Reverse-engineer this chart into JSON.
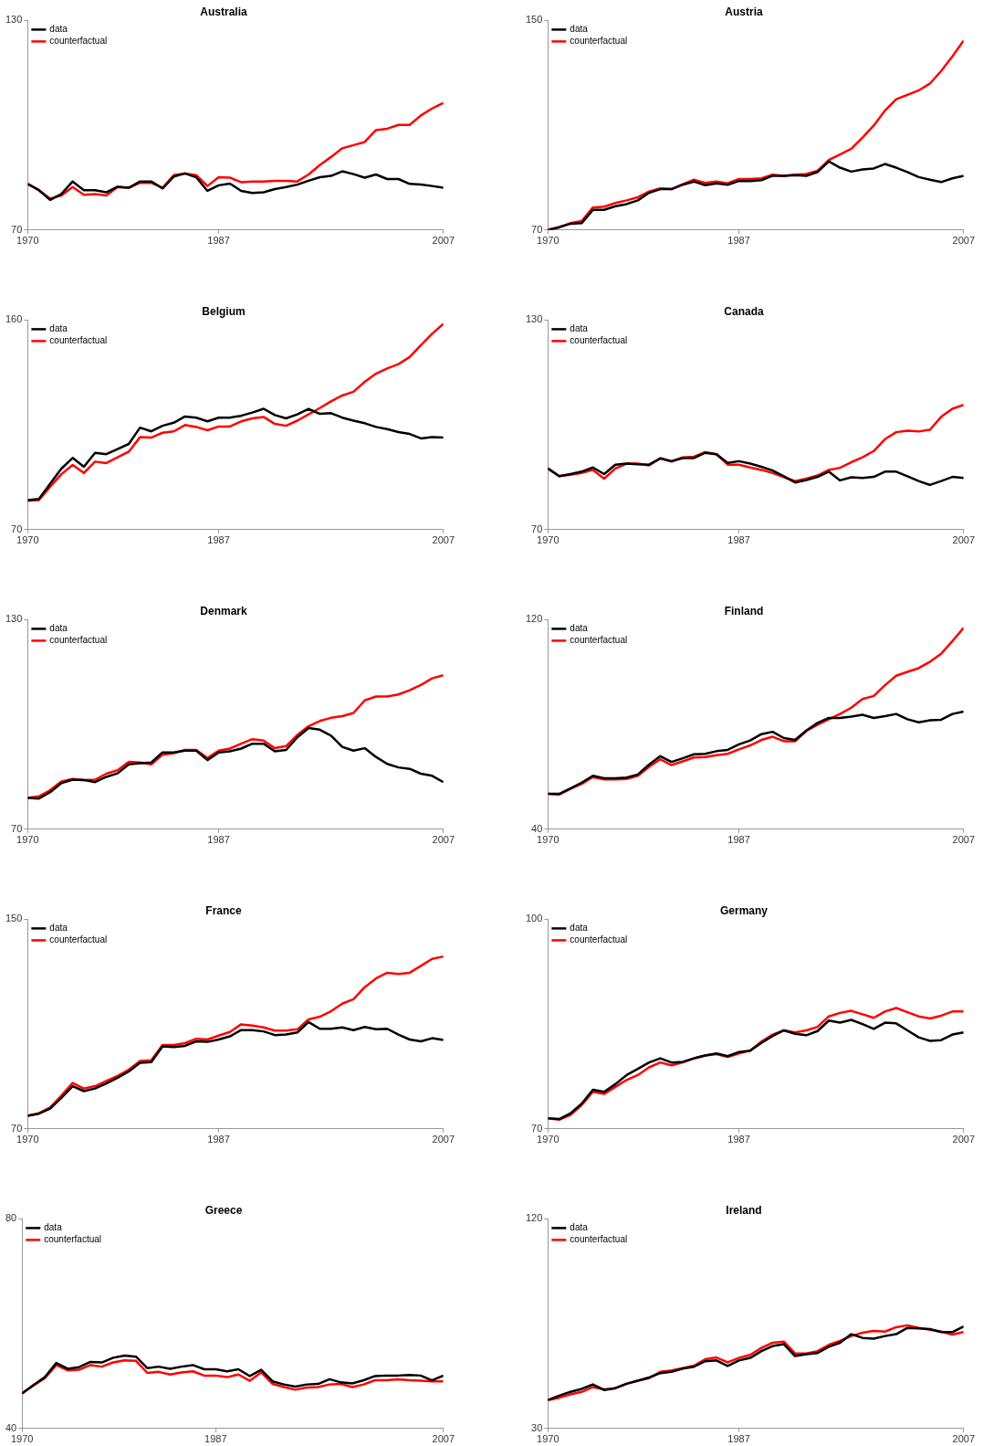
{
  "chart_data": [
    {
      "type": "line",
      "title": "Australia",
      "legend": "top left",
      "grid": false,
      "marker": "none",
      "line_style": "solid",
      "x": [
        1970,
        1971,
        1972,
        1973,
        1974,
        1975,
        1976,
        1977,
        1978,
        1979,
        1980,
        1981,
        1982,
        1983,
        1984,
        1985,
        1986,
        1987,
        1988,
        1989,
        1990,
        1991,
        1992,
        1993,
        1994,
        1995,
        1996,
        1997,
        1998,
        1999,
        2000,
        2001,
        2002,
        2003,
        2004,
        2005,
        2006,
        2007
      ],
      "xlim": [
        1970,
        2007
      ],
      "xticks": [
        1970,
        1987,
        2007
      ],
      "ylim": [
        70,
        130
      ],
      "yticks": [
        70,
        130
      ],
      "series": [
        {
          "name": "data",
          "color": "#000000",
          "values": [
            83.2,
            81.4,
            78.6,
            80.3,
            83.9,
            81.4,
            81.4,
            80.8,
            82.4,
            82.1,
            83.9,
            83.9,
            81.9,
            85.3,
            86.2,
            85.1,
            81.2,
            82.8,
            83.3,
            81.2,
            80.6,
            80.8,
            81.7,
            82.3,
            83.0,
            84.1,
            85.1,
            85.5,
            86.8,
            86.0,
            85.0,
            85.9,
            84.6,
            84.6,
            83.2,
            83.0,
            82.6,
            82.1
          ]
        },
        {
          "name": "counterfactual",
          "color": "#ff0000",
          "values": [
            83.2,
            81.4,
            79.0,
            79.9,
            82.3,
            80.1,
            80.3,
            79.9,
            82.3,
            82.1,
            83.5,
            83.5,
            82.1,
            85.7,
            86.2,
            85.7,
            82.6,
            85.1,
            85.0,
            83.7,
            83.9,
            83.9,
            84.1,
            84.1,
            83.9,
            85.9,
            88.6,
            90.9,
            93.4,
            94.3,
            95.2,
            98.6,
            99.0,
            100.1,
            100.1,
            102.8,
            104.8,
            106.4
          ]
        }
      ]
    },
    {
      "type": "line",
      "title": "Austria",
      "legend": "top left",
      "grid": false,
      "marker": "none",
      "line_style": "solid",
      "x": [
        1970,
        1971,
        1972,
        1973,
        1974,
        1975,
        1976,
        1977,
        1978,
        1979,
        1980,
        1981,
        1982,
        1983,
        1984,
        1985,
        1986,
        1987,
        1988,
        1989,
        1990,
        1991,
        1992,
        1993,
        1994,
        1995,
        1996,
        1997,
        1998,
        1999,
        2000,
        2001,
        2002,
        2003,
        2004,
        2005,
        2006,
        2007
      ],
      "xlim": [
        1970,
        2007
      ],
      "xticks": [
        1970,
        1987,
        2007
      ],
      "ylim": [
        70,
        150
      ],
      "yticks": [
        70,
        150
      ],
      "series": [
        {
          "name": "data",
          "color": "#000000",
          "values": [
            70.0,
            71.0,
            72.4,
            72.6,
            77.7,
            77.7,
            79.1,
            79.9,
            81.3,
            84.2,
            85.6,
            85.6,
            87.3,
            88.5,
            87.1,
            87.8,
            87.3,
            88.7,
            88.7,
            89.0,
            90.7,
            90.7,
            90.9,
            90.7,
            92.1,
            96.2,
            93.8,
            92.3,
            93.1,
            93.5,
            95.2,
            93.8,
            92.1,
            90.2,
            89.2,
            88.3,
            89.7,
            90.7
          ]
        },
        {
          "name": "counterfactual",
          "color": "#ff0000",
          "values": [
            70.0,
            71.2,
            72.6,
            73.4,
            78.6,
            78.9,
            80.3,
            81.3,
            82.5,
            84.7,
            85.9,
            85.6,
            87.5,
            89.2,
            88.0,
            88.5,
            87.8,
            89.5,
            89.5,
            89.7,
            91.1,
            90.7,
            91.1,
            91.4,
            92.6,
            96.7,
            98.8,
            101.0,
            105.3,
            109.9,
            115.6,
            119.9,
            121.6,
            123.3,
            125.9,
            130.7,
            136.3,
            142.3
          ]
        }
      ]
    },
    {
      "type": "line",
      "title": "Belgium",
      "legend": "top left",
      "grid": false,
      "marker": "none",
      "line_style": "solid",
      "x": [
        1970,
        1971,
        1972,
        1973,
        1974,
        1975,
        1976,
        1977,
        1978,
        1979,
        1980,
        1981,
        1982,
        1983,
        1984,
        1985,
        1986,
        1987,
        1988,
        1989,
        1990,
        1991,
        1992,
        1993,
        1994,
        1995,
        1996,
        1997,
        1998,
        1999,
        2000,
        2001,
        2002,
        2003,
        2004,
        2005,
        2006,
        2007
      ],
      "xlim": [
        1970,
        2007
      ],
      "xticks": [
        1970,
        1987,
        2007
      ],
      "ylim": [
        70,
        160
      ],
      "yticks": [
        70,
        160
      ],
      "series": [
        {
          "name": "data",
          "color": "#000000",
          "values": [
            82.7,
            83.2,
            89.7,
            96.2,
            100.8,
            97.0,
            103.0,
            102.4,
            104.6,
            106.8,
            113.8,
            112.2,
            114.6,
            115.9,
            118.6,
            118.1,
            116.5,
            118.1,
            118.1,
            118.9,
            120.3,
            121.9,
            119.2,
            117.8,
            119.5,
            121.9,
            119.7,
            120.0,
            118.1,
            116.8,
            115.7,
            114.1,
            113.2,
            111.9,
            111.1,
            109.2,
            109.7,
            109.5
          ]
        },
        {
          "name": "counterfactual",
          "color": "#ff0000",
          "values": [
            82.4,
            82.7,
            88.4,
            93.8,
            97.8,
            94.3,
            99.2,
            98.6,
            101.1,
            103.5,
            109.7,
            109.5,
            111.6,
            112.2,
            114.9,
            114.1,
            112.7,
            114.3,
            114.3,
            116.5,
            117.8,
            118.4,
            115.4,
            114.6,
            116.8,
            119.5,
            122.2,
            125.1,
            127.6,
            129.2,
            133.5,
            137.0,
            139.2,
            141.1,
            144.1,
            149.2,
            154.1,
            158.4
          ]
        }
      ]
    },
    {
      "type": "line",
      "title": "Canada",
      "legend": "top left",
      "grid": false,
      "marker": "none",
      "line_style": "solid",
      "x": [
        1970,
        1971,
        1972,
        1973,
        1974,
        1975,
        1976,
        1977,
        1978,
        1979,
        1980,
        1981,
        1982,
        1983,
        1984,
        1985,
        1986,
        1987,
        1988,
        1989,
        1990,
        1991,
        1992,
        1993,
        1994,
        1995,
        1996,
        1997,
        1998,
        1999,
        2000,
        2001,
        2002,
        2003,
        2004,
        2005,
        2006,
        2007
      ],
      "xlim": [
        1970,
        2007
      ],
      "xticks": [
        1970,
        1987,
        2007
      ],
      "ylim": [
        70,
        130
      ],
      "yticks": [
        70,
        130
      ],
      "series": [
        {
          "name": "data",
          "color": "#000000",
          "values": [
            87.5,
            85.3,
            85.9,
            86.6,
            87.8,
            85.9,
            88.6,
            88.9,
            88.7,
            88.6,
            90.4,
            89.6,
            90.5,
            90.5,
            92.0,
            91.6,
            89.1,
            89.6,
            88.9,
            88.0,
            86.9,
            85.3,
            83.5,
            84.2,
            85.1,
            86.6,
            84.1,
            85.0,
            84.8,
            85.1,
            86.6,
            86.6,
            85.3,
            83.9,
            82.8,
            83.9,
            85.1,
            84.8
          ]
        },
        {
          "name": "counterfactual",
          "color": "#ff0000",
          "values": [
            87.5,
            85.3,
            85.7,
            86.2,
            87.1,
            84.6,
            87.5,
            88.9,
            88.9,
            88.4,
            90.4,
            89.5,
            90.7,
            90.9,
            92.2,
            91.6,
            88.6,
            88.6,
            87.8,
            87.1,
            86.2,
            85.0,
            83.9,
            84.6,
            85.5,
            87.1,
            87.7,
            89.3,
            90.7,
            92.5,
            95.9,
            97.9,
            98.3,
            98.1,
            98.6,
            102.3,
            104.6,
            105.7
          ]
        }
      ]
    },
    {
      "type": "line",
      "title": "Denmark",
      "legend": "top left",
      "grid": false,
      "marker": "none",
      "line_style": "solid",
      "x": [
        1970,
        1971,
        1972,
        1973,
        1974,
        1975,
        1976,
        1977,
        1978,
        1979,
        1980,
        1981,
        1982,
        1983,
        1984,
        1985,
        1986,
        1987,
        1988,
        1989,
        1990,
        1991,
        1992,
        1993,
        1994,
        1995,
        1996,
        1997,
        1998,
        1999,
        2000,
        2001,
        2002,
        2003,
        2004,
        2005,
        2006,
        2007
      ],
      "xlim": [
        1970,
        2007
      ],
      "xticks": [
        1970,
        1987,
        2007
      ],
      "ylim": [
        70,
        130
      ],
      "yticks": [
        70,
        130
      ],
      "series": [
        {
          "name": "data",
          "color": "#000000",
          "values": [
            79.0,
            78.8,
            80.6,
            83.2,
            84.2,
            84.1,
            83.5,
            85.0,
            86.0,
            88.6,
            88.9,
            89.1,
            92.0,
            92.0,
            92.5,
            92.5,
            89.8,
            92.0,
            92.3,
            93.1,
            94.5,
            94.5,
            92.3,
            92.7,
            96.3,
            99.0,
            98.5,
            96.8,
            93.6,
            92.5,
            93.2,
            90.7,
            88.7,
            87.7,
            87.3,
            85.9,
            85.3,
            83.5
          ]
        },
        {
          "name": "counterfactual",
          "color": "#ff0000",
          "values": [
            79.0,
            79.4,
            81.2,
            83.7,
            84.4,
            84.1,
            84.2,
            85.9,
            86.9,
            89.3,
            89.1,
            88.6,
            91.3,
            91.8,
            92.7,
            92.7,
            90.4,
            92.5,
            93.1,
            94.5,
            95.8,
            95.4,
            93.2,
            93.8,
            97.0,
            99.5,
            101.0,
            101.9,
            102.4,
            103.3,
            106.9,
            108.0,
            108.0,
            108.6,
            109.8,
            111.3,
            113.2,
            114.1
          ]
        }
      ]
    },
    {
      "type": "line",
      "title": "Finland",
      "legend": "top left",
      "grid": false,
      "marker": "none",
      "line_style": "solid",
      "x": [
        1970,
        1971,
        1972,
        1973,
        1974,
        1975,
        1976,
        1977,
        1978,
        1979,
        1980,
        1981,
        1982,
        1983,
        1984,
        1985,
        1986,
        1987,
        1988,
        1989,
        1990,
        1991,
        1992,
        1993,
        1994,
        1995,
        1996,
        1997,
        1998,
        1999,
        2000,
        2001,
        2002,
        2003,
        2004,
        2005,
        2006,
        2007
      ],
      "xlim": [
        1970,
        2007
      ],
      "xticks": [
        1970,
        1987,
        2007
      ],
      "ylim": [
        40,
        120
      ],
      "yticks": [
        40,
        120
      ],
      "series": [
        {
          "name": "data",
          "color": "#000000",
          "values": [
            53.5,
            53.5,
            55.6,
            57.8,
            60.4,
            59.5,
            59.5,
            59.7,
            60.9,
            64.7,
            67.9,
            65.7,
            67.1,
            68.6,
            68.8,
            69.8,
            70.3,
            72.4,
            73.9,
            76.3,
            77.2,
            74.8,
            74.1,
            77.7,
            80.6,
            82.5,
            82.5,
            83.0,
            83.7,
            82.5,
            83.2,
            84.0,
            82.0,
            80.8,
            81.6,
            81.8,
            84.0,
            84.9
          ]
        },
        {
          "name": "counterfactual",
          "color": "#ff0000",
          "values": [
            53.5,
            53.2,
            55.4,
            57.3,
            59.9,
            59.0,
            59.0,
            59.2,
            60.4,
            63.8,
            66.7,
            64.5,
            65.9,
            67.4,
            67.6,
            68.3,
            68.8,
            70.5,
            72.0,
            74.1,
            75.3,
            73.6,
            73.6,
            77.5,
            79.9,
            82.0,
            84.0,
            86.4,
            89.7,
            90.9,
            95.0,
            98.6,
            100.1,
            101.5,
            103.9,
            107.0,
            111.8,
            116.9
          ]
        }
      ]
    },
    {
      "type": "line",
      "title": "France",
      "legend": "top left",
      "grid": false,
      "marker": "none",
      "line_style": "solid",
      "x": [
        1970,
        1971,
        1972,
        1973,
        1974,
        1975,
        1976,
        1977,
        1978,
        1979,
        1980,
        1981,
        1982,
        1983,
        1984,
        1985,
        1986,
        1987,
        1988,
        1989,
        1990,
        1991,
        1992,
        1993,
        1994,
        1995,
        1996,
        1997,
        1998,
        1999,
        2000,
        2001,
        2002,
        2003,
        2004,
        2005,
        2006,
        2007
      ],
      "xlim": [
        1970,
        2007
      ],
      "xticks": [
        1970,
        1987,
        2007
      ],
      "ylim": [
        70,
        150
      ],
      "yticks": [
        70,
        150
      ],
      "series": [
        {
          "name": "data",
          "color": "#000000",
          "values": [
            75.0,
            75.8,
            77.7,
            81.8,
            86.3,
            84.4,
            85.4,
            87.3,
            89.5,
            91.9,
            95.2,
            95.5,
            101.5,
            101.2,
            101.7,
            103.4,
            103.2,
            104.1,
            105.3,
            107.7,
            107.7,
            107.2,
            105.8,
            106.0,
            106.8,
            110.8,
            108.2,
            108.2,
            108.7,
            107.7,
            108.9,
            108.0,
            108.2,
            106.0,
            104.1,
            103.4,
            104.6,
            103.9
          ]
        },
        {
          "name": "counterfactual",
          "color": "#ff0000",
          "values": [
            75.0,
            76.0,
            78.2,
            82.7,
            87.5,
            85.4,
            86.3,
            88.3,
            90.2,
            92.6,
            95.9,
            96.2,
            102.0,
            102.0,
            102.7,
            104.4,
            104.1,
            105.6,
            107.0,
            109.9,
            109.4,
            108.7,
            107.5,
            107.5,
            108.0,
            111.8,
            112.8,
            114.9,
            117.8,
            119.5,
            124.1,
            127.4,
            129.6,
            129.1,
            129.6,
            132.2,
            134.9,
            135.8
          ]
        }
      ]
    },
    {
      "type": "line",
      "title": "Germany",
      "legend": "top left",
      "grid": false,
      "marker": "none",
      "line_style": "solid",
      "x": [
        1970,
        1971,
        1972,
        1973,
        1974,
        1975,
        1976,
        1977,
        1978,
        1979,
        1980,
        1981,
        1982,
        1983,
        1984,
        1985,
        1986,
        1987,
        1988,
        1989,
        1990,
        1991,
        1992,
        1993,
        1994,
        1995,
        1996,
        1997,
        1998,
        1999,
        2000,
        2001,
        2002,
        2003,
        2004,
        2005,
        2006,
        2007
      ],
      "xlim": [
        1970,
        2007
      ],
      "xticks": [
        1970,
        1987,
        2007
      ],
      "ylim": [
        70,
        100
      ],
      "yticks": [
        70,
        100
      ],
      "series": [
        {
          "name": "data",
          "color": "#000000",
          "values": [
            71.5,
            71.4,
            72.2,
            73.6,
            75.6,
            75.3,
            76.4,
            77.7,
            78.6,
            79.5,
            80.1,
            79.5,
            79.6,
            80.1,
            80.5,
            80.8,
            80.4,
            81.0,
            81.2,
            82.3,
            83.3,
            84.1,
            83.6,
            83.4,
            84.0,
            85.5,
            85.2,
            85.6,
            85.0,
            84.3,
            85.2,
            85.1,
            84.1,
            83.1,
            82.6,
            82.7,
            83.5,
            83.8
          ]
        },
        {
          "name": "counterfactual",
          "color": "#ff0000",
          "values": [
            71.5,
            71.3,
            72.0,
            73.4,
            75.3,
            75.0,
            76.0,
            77.0,
            77.7,
            78.8,
            79.5,
            79.1,
            79.5,
            80.1,
            80.5,
            80.7,
            80.3,
            80.8,
            81.2,
            82.5,
            83.5,
            84.1,
            83.8,
            84.1,
            84.6,
            86.1,
            86.6,
            86.9,
            86.4,
            85.9,
            86.8,
            87.3,
            86.7,
            86.1,
            85.8,
            86.2,
            86.8,
            86.8
          ]
        }
      ]
    },
    {
      "type": "line",
      "title": "Greece",
      "legend": "top left",
      "grid": false,
      "marker": "none",
      "line_style": "solid",
      "x": [
        1970,
        1971,
        1972,
        1973,
        1974,
        1975,
        1976,
        1977,
        1978,
        1979,
        1980,
        1981,
        1982,
        1983,
        1984,
        1985,
        1986,
        1987,
        1988,
        1989,
        1990,
        1991,
        1992,
        1993,
        1994,
        1995,
        1996,
        1997,
        1998,
        1999,
        2000,
        2001,
        2002,
        2003,
        2004,
        2005,
        2006,
        2007
      ],
      "xlim": [
        1970,
        2007
      ],
      "xticks": [
        1970,
        1987,
        2007
      ],
      "ylim": [
        40,
        80
      ],
      "yticks": [
        40,
        80
      ],
      "series": [
        {
          "name": "data",
          "color": "#000000",
          "values": [
            46.7,
            48.3,
            49.8,
            52.5,
            51.4,
            51.7,
            52.7,
            52.6,
            53.5,
            53.9,
            53.7,
            51.5,
            51.8,
            51.4,
            51.8,
            52.1,
            51.3,
            51.3,
            50.9,
            51.3,
            50.0,
            51.2,
            49.0,
            48.4,
            48.0,
            48.4,
            48.5,
            49.4,
            48.8,
            48.6,
            49.2,
            50.0,
            50.1,
            50.1,
            50.2,
            50.1,
            49.2,
            50.1
          ]
        },
        {
          "name": "counterfactual",
          "color": "#ff0000",
          "values": [
            46.7,
            48.2,
            49.6,
            52.1,
            51.1,
            51.2,
            52.1,
            51.8,
            52.6,
            53.0,
            52.9,
            50.6,
            50.8,
            50.3,
            50.7,
            50.9,
            50.1,
            50.1,
            49.8,
            50.3,
            49.1,
            50.7,
            48.5,
            47.9,
            47.4,
            47.8,
            47.9,
            48.4,
            48.5,
            47.9,
            48.4,
            49.2,
            49.2,
            49.4,
            49.2,
            49.1,
            49.0,
            49.0
          ]
        }
      ]
    },
    {
      "type": "line",
      "title": "Ireland",
      "legend": "top left",
      "grid": false,
      "marker": "none",
      "line_style": "solid",
      "x": [
        1970,
        1971,
        1972,
        1973,
        1974,
        1975,
        1976,
        1977,
        1978,
        1979,
        1980,
        1981,
        1982,
        1983,
        1984,
        1985,
        1986,
        1987,
        1988,
        1989,
        1990,
        1991,
        1992,
        1993,
        1994,
        1995,
        1996,
        1997,
        1998,
        1999,
        2000,
        2001,
        2002,
        2003,
        2004,
        2005,
        2006,
        2007
      ],
      "xlim": [
        1970,
        2007
      ],
      "xticks": [
        1970,
        1987,
        2007
      ],
      "ylim": [
        30,
        120
      ],
      "yticks": [
        30,
        120
      ],
      "series": [
        {
          "name": "data",
          "color": "#000000",
          "values": [
            42.2,
            44.1,
            45.7,
            47.0,
            48.9,
            46.5,
            47.3,
            49.2,
            50.5,
            51.9,
            53.8,
            54.3,
            55.7,
            56.5,
            58.9,
            59.2,
            56.8,
            59.2,
            60.3,
            63.2,
            65.4,
            66.2,
            61.1,
            61.9,
            62.4,
            65.1,
            66.8,
            70.5,
            68.9,
            68.6,
            69.7,
            70.5,
            73.2,
            73.0,
            72.7,
            71.4,
            71.4,
            73.8
          ]
        },
        {
          "name": "counterfactual",
          "color": "#ff0000",
          "values": [
            42.2,
            43.2,
            44.6,
            45.7,
            47.8,
            46.8,
            47.3,
            49.2,
            50.5,
            51.6,
            54.3,
            54.9,
            55.9,
            57.0,
            59.7,
            60.5,
            58.4,
            60.3,
            61.6,
            64.6,
            66.8,
            67.3,
            62.2,
            62.2,
            63.2,
            65.9,
            67.6,
            69.7,
            71.1,
            71.9,
            71.6,
            73.5,
            74.3,
            73.2,
            72.4,
            71.6,
            70.3,
            71.4
          ]
        }
      ]
    }
  ]
}
